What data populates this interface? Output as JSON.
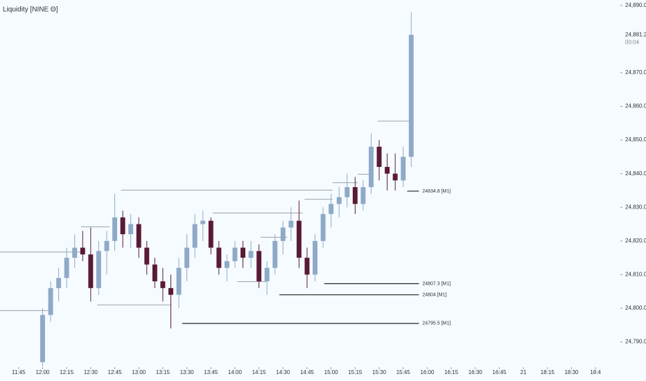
{
  "chart_data": {
    "type": "candlestick",
    "title": "Liquidity [NINE Θ]",
    "x": [
      720,
      725,
      730,
      735,
      740,
      745,
      750,
      755,
      760,
      765,
      770,
      775,
      780,
      785,
      790,
      795,
      800,
      805,
      810,
      815,
      820,
      825,
      830,
      835,
      840,
      845,
      850,
      855,
      860,
      865,
      870,
      875,
      880,
      885,
      890,
      895,
      900,
      905,
      910,
      915,
      920,
      925,
      930,
      935,
      940,
      945,
      950
    ],
    "open": [
      24784,
      24798,
      24806,
      24809,
      24815,
      24818,
      24816,
      24806,
      24817,
      24820,
      24827,
      24822,
      24825,
      24818,
      24813,
      24808,
      24806,
      24804,
      24812,
      24818,
      24825,
      24826,
      24818,
      24812,
      24814,
      24818,
      24815,
      24817,
      24808,
      24812,
      24820,
      24824,
      24826,
      24815,
      24810,
      24820,
      24828,
      24831,
      24833,
      24836,
      24831,
      24836,
      24848,
      24842,
      24840,
      24838,
      24845
    ],
    "high": [
      24800,
      24808,
      24812,
      24818,
      24822,
      24823,
      24824,
      24820,
      24823,
      24834,
      24829,
      24828,
      24827,
      24820,
      24815,
      24812,
      24810,
      24815,
      24822,
      24828,
      24829,
      24827,
      24820,
      24816,
      24820,
      24820,
      24820,
      24819,
      24814,
      24822,
      24826,
      24830,
      24832,
      24818,
      24822,
      24830,
      24834,
      24836,
      24840,
      24839,
      24838,
      24852,
      24850,
      24846,
      24846,
      24848,
      24888
    ],
    "low": [
      24782.8,
      24796,
      24802,
      24806,
      24812,
      24814,
      24802,
      24804,
      24810,
      24817,
      24818,
      24818,
      24815,
      24810,
      24806,
      24802,
      24794,
      24800,
      24808,
      24815,
      24820,
      24816,
      24810,
      24808,
      24812,
      24812,
      24812,
      24806,
      24804,
      24810,
      24816,
      24820,
      24812,
      24806,
      24808,
      24818,
      24824,
      24827,
      24830,
      24828,
      24829,
      24834,
      24838,
      24835,
      24835,
      24836,
      24842
    ],
    "close": [
      24798,
      24806,
      24809,
      24815,
      24818,
      24816,
      24806,
      24817,
      24820,
      24827,
      24822,
      24825,
      24818,
      24813,
      24808,
      24806,
      24804,
      24812,
      24818,
      24825,
      24826,
      24818,
      24812,
      24814,
      24818,
      24815,
      24817,
      24808,
      24812,
      24820,
      24824,
      24826,
      24815,
      24810,
      24820,
      24828,
      24831,
      24833,
      24836,
      24831,
      24836,
      24848,
      24842,
      24840,
      24838,
      24845,
      24881.25
    ],
    "up_color": "#8fa9c8",
    "down_color": "#5a1a35",
    "levels": [
      {
        "value": 24834.8,
        "label": "24834.8 [M1]",
        "start": 947.5,
        "end": 954.8
      },
      {
        "value": 24807.3,
        "label": "24807.3 [M1]",
        "start": 895.7,
        "end": 954.8
      },
      {
        "value": 24804,
        "label": "24804 [M1]",
        "start": 867.7,
        "end": 954.8
      },
      {
        "value": 24795.5,
        "label": "24795.5 [M1]",
        "start": 807.1,
        "end": 954.8
      }
    ],
    "swept_levels": [
      {
        "value": 24816.7,
        "start": 693.4,
        "end": 745.2
      },
      {
        "value": 24799.3,
        "start": 693.4,
        "end": 726.6
      },
      {
        "value": 24824.2,
        "start": 744,
        "end": 761.8
      },
      {
        "value": 24835.1,
        "start": 768.9,
        "end": 900.9
      },
      {
        "value": 24801,
        "start": 754,
        "end": 800.4
      },
      {
        "value": 24828.3,
        "start": 826.2,
        "end": 882.2
      },
      {
        "value": 24807.9,
        "start": 841.5,
        "end": 859.4
      },
      {
        "value": 24821.1,
        "start": 856,
        "end": 872.6
      },
      {
        "value": 24832.4,
        "start": 883.4,
        "end": 900.9
      },
      {
        "value": 24837.3,
        "start": 900.9,
        "end": 916.6
      },
      {
        "value": 24839.8,
        "start": 916.6,
        "end": 925.7
      },
      {
        "value": 24855.6,
        "start": 929.1,
        "end": 949.8
      }
    ],
    "last_price": {
      "value": 24881.25,
      "label": "24,881.25"
    },
    "countdown": "00:04",
    "ylim": [
      24782.5,
      24891.6
    ],
    "yticks": [
      {
        "value": 24790,
        "label": "24,790.00"
      },
      {
        "value": 24800,
        "label": "24,800.00"
      },
      {
        "value": 24810,
        "label": "24,810.00"
      },
      {
        "value": 24820,
        "label": "24,820.00"
      },
      {
        "value": 24830,
        "label": "24,830.00"
      },
      {
        "value": 24840,
        "label": "24,840.00"
      },
      {
        "value": 24850,
        "label": "24,850.00"
      },
      {
        "value": 24860,
        "label": "24,860.00"
      },
      {
        "value": 24870,
        "label": "24,870.00"
      },
      {
        "value": 24890,
        "label": "24,890.00"
      }
    ],
    "xlim": [
      693.4,
      1080.5
    ],
    "xticks": [
      {
        "value": 705,
        "label": "11:45"
      },
      {
        "value": 720,
        "label": "12:00"
      },
      {
        "value": 735,
        "label": "12:15"
      },
      {
        "value": 750,
        "label": "12:30"
      },
      {
        "value": 765,
        "label": "12:45"
      },
      {
        "value": 780,
        "label": "13:00"
      },
      {
        "value": 795,
        "label": "13:15"
      },
      {
        "value": 810,
        "label": "13:30"
      },
      {
        "value": 825,
        "label": "13:45"
      },
      {
        "value": 840,
        "label": "14:00"
      },
      {
        "value": 855,
        "label": "14:15"
      },
      {
        "value": 870,
        "label": "14:30"
      },
      {
        "value": 885,
        "label": "14:45"
      },
      {
        "value": 900,
        "label": "15:00"
      },
      {
        "value": 915,
        "label": "15:15"
      },
      {
        "value": 930,
        "label": "15:30"
      },
      {
        "value": 945,
        "label": "15:45"
      },
      {
        "value": 960,
        "label": "16:00"
      },
      {
        "value": 975,
        "label": "16:15"
      },
      {
        "value": 990,
        "label": "16:30"
      },
      {
        "value": 1005,
        "label": "16:45"
      },
      {
        "value": 1020,
        "label": "21"
      },
      {
        "value": 1035,
        "label": "18:15"
      },
      {
        "value": 1050,
        "label": "18:30"
      },
      {
        "value": 1065,
        "label": "18:4"
      }
    ]
  }
}
